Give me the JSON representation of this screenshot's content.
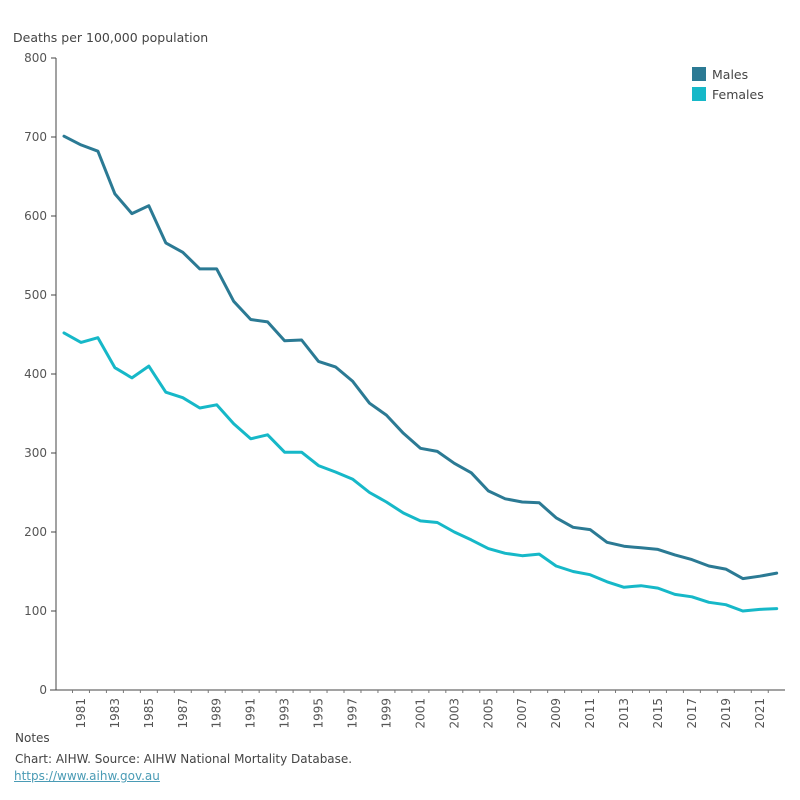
{
  "chart_data": {
    "type": "line",
    "title": "",
    "ylabel": "Deaths per 100,000 population",
    "xlabel": "",
    "ylim": [
      0,
      800
    ],
    "yticks": [
      0,
      100,
      200,
      300,
      400,
      500,
      600,
      700,
      800
    ],
    "x": [
      1980,
      1981,
      1982,
      1983,
      1984,
      1985,
      1986,
      1987,
      1988,
      1989,
      1990,
      1991,
      1992,
      1993,
      1994,
      1995,
      1996,
      1997,
      1998,
      1999,
      2000,
      2001,
      2002,
      2003,
      2004,
      2005,
      2006,
      2007,
      2008,
      2009,
      2010,
      2011,
      2012,
      2013,
      2014,
      2015,
      2016,
      2017,
      2018,
      2019,
      2020,
      2021,
      2022
    ],
    "xtick_labels": [
      "1981",
      "1983",
      "1985",
      "1987",
      "1989",
      "1991",
      "1993",
      "1995",
      "1997",
      "1999",
      "2001",
      "2003",
      "2005",
      "2007",
      "2009",
      "2011",
      "2013",
      "2015",
      "2017",
      "2019",
      "2021"
    ],
    "grid": false,
    "legend_position": "top-right",
    "series": [
      {
        "name": "Males",
        "color": "#2b7a94",
        "values": [
          701,
          690,
          682,
          628,
          603,
          613,
          566,
          554,
          533,
          533,
          492,
          469,
          466,
          442,
          443,
          416,
          409,
          391,
          363,
          348,
          325,
          306,
          302,
          287,
          275,
          252,
          242,
          238,
          237,
          218,
          206,
          203,
          187,
          182,
          180,
          178,
          171,
          165,
          157,
          153,
          141,
          144,
          148
        ]
      },
      {
        "name": "Females",
        "color": "#16b8c8",
        "values": [
          452,
          440,
          446,
          408,
          395,
          410,
          377,
          370,
          357,
          361,
          337,
          318,
          323,
          301,
          301,
          284,
          276,
          267,
          250,
          238,
          224,
          214,
          212,
          200,
          190,
          179,
          173,
          170,
          172,
          157,
          150,
          146,
          137,
          130,
          132,
          129,
          121,
          118,
          111,
          108,
          100,
          102,
          103
        ]
      }
    ]
  },
  "notes": {
    "title": "Notes",
    "text": "Chart: AIHW. Source: AIHW National Mortality Database.",
    "link": "https://www.aihw.gov.au"
  }
}
